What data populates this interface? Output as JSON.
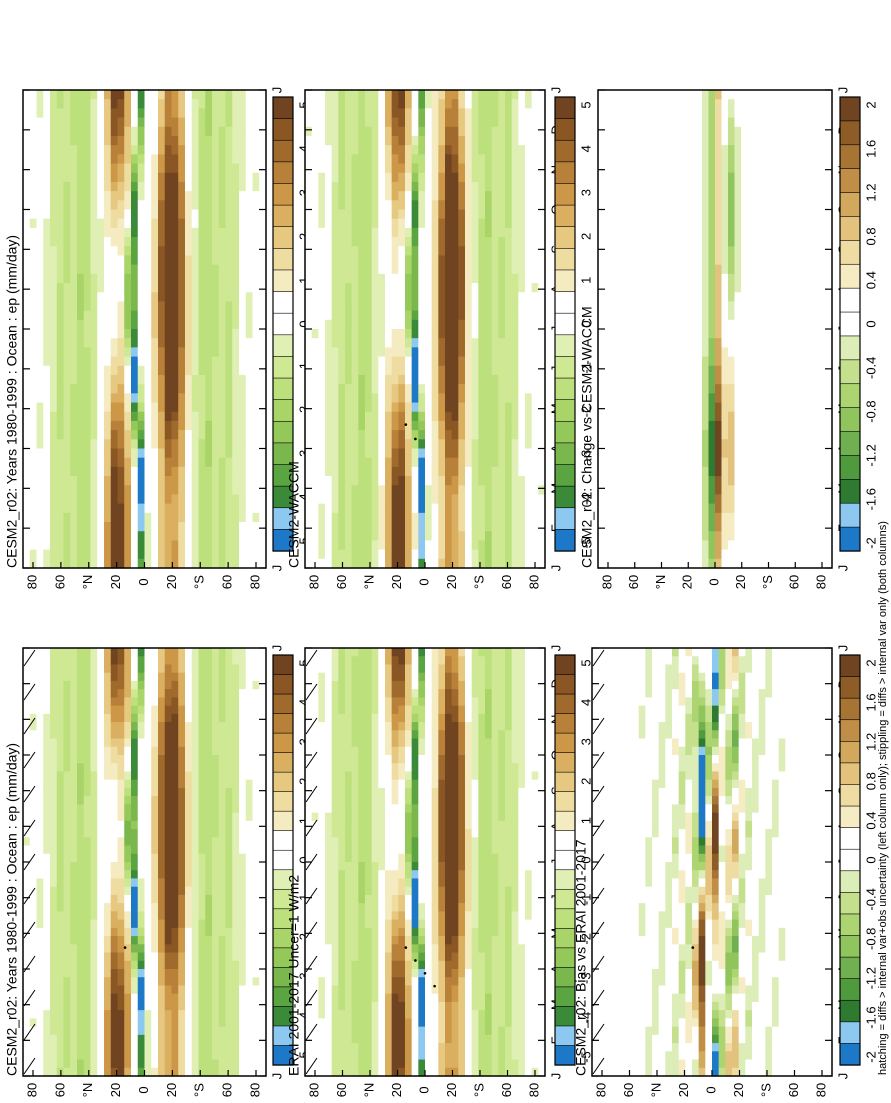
{
  "figure": {
    "footnote": "hatching = diffs > internal var+obs uncertainty (left column only); stippling = diffs > internal var only (both columns)"
  },
  "palettes": {
    "field": [
      "#1e78c8",
      "#8cc8f0",
      "#3a8a3a",
      "#5aa541",
      "#7ab84e",
      "#94c858",
      "#a8d468",
      "#bce07c",
      "#cee894",
      "#e0f0b4",
      "#ffffff",
      "#ffffff",
      "#f4ecc0",
      "#eedca0",
      "#e6c880",
      "#dab060",
      "#cc9848",
      "#b88038",
      "#a06a2c",
      "#8a5624",
      "#704420"
    ],
    "diff": [
      "#1e78c8",
      "#8cc8f0",
      "#2e7a30",
      "#4e9a3c",
      "#70b050",
      "#90c45c",
      "#acd470",
      "#c4e08c",
      "#dcedb8",
      "#ffffff",
      "#ffffff",
      "#f6ecc4",
      "#eedca2",
      "#e2c27c",
      "#d2a85c",
      "#c08e46",
      "#a87434",
      "#8e5c26",
      "#704420"
    ]
  },
  "chart_data": [
    {
      "type": "heatmap",
      "title": "CESM2_r02: Years 1980-1999 : Ocean : ep (mm/day)",
      "x_ticks": [
        "J",
        "F",
        "M",
        "A",
        "M",
        "J",
        "J",
        "A",
        "S",
        "O",
        "N",
        "D",
        "J"
      ],
      "y_ticks": [
        "80",
        "60",
        "°N",
        "20",
        "0",
        "20",
        "°S",
        "60",
        "80"
      ],
      "colorbar_labels": [
        "5",
        "4",
        "3",
        "2",
        "1",
        "0",
        "-1",
        "-2",
        "-3",
        "-4",
        "-5"
      ],
      "palette": "field",
      "kind": "field",
      "hatching": true,
      "stipple": 1,
      "variant": 0
    },
    {
      "type": "heatmap",
      "title": "CESM2_r02: Years 1980-1999 : Ocean : ep (mm/day)",
      "x_ticks": [
        "J",
        "F",
        "M",
        "A",
        "M",
        "J",
        "J",
        "A",
        "S",
        "O",
        "N",
        "D",
        "J"
      ],
      "y_ticks": [
        "80",
        "60",
        "°N",
        "20",
        "0",
        "20",
        "°S",
        "60",
        "80"
      ],
      "colorbar_labels": [
        "5",
        "4",
        "3",
        "2",
        "1",
        "0",
        "-1",
        "-2",
        "-3",
        "-4",
        "-5"
      ],
      "palette": "field",
      "kind": "field",
      "hatching": false,
      "stipple": 0,
      "variant": 1
    },
    {
      "type": "heatmap",
      "title": "ERAI 2001-2017 Uncer=1 W/m2",
      "x_ticks": [
        "J",
        "F",
        "M",
        "A",
        "M",
        "J",
        "J",
        "A",
        "S",
        "O",
        "N",
        "D",
        "J"
      ],
      "y_ticks": [
        "80",
        "60",
        "°N",
        "20",
        "0",
        "20",
        "°S",
        "60",
        "80"
      ],
      "colorbar_labels": [
        "5",
        "4",
        "3",
        "2",
        "1",
        "0",
        "-1",
        "-2",
        "-3",
        "-4",
        "-5"
      ],
      "palette": "field",
      "kind": "field",
      "hatching": true,
      "stipple": 4,
      "variant": 2
    },
    {
      "type": "heatmap",
      "title": "CESM2-WACCM",
      "x_ticks": [
        "J",
        "F",
        "M",
        "A",
        "M",
        "J",
        "J",
        "A",
        "S",
        "O",
        "N",
        "D",
        "J"
      ],
      "y_ticks": [
        "80",
        "60",
        "°N",
        "20",
        "0",
        "20",
        "°S",
        "60",
        "80"
      ],
      "colorbar_labels": [
        "5",
        "4",
        "3",
        "2",
        "1",
        "0",
        "-1",
        "-2",
        "-3",
        "-4",
        "-5"
      ],
      "palette": "field",
      "kind": "field",
      "hatching": false,
      "stipple": 2,
      "variant": 3
    },
    {
      "type": "heatmap",
      "title": "CESM2_r02: Bias vs ERAI 2001-2017",
      "x_ticks": [
        "J",
        "F",
        "M",
        "A",
        "M",
        "J",
        "J",
        "A",
        "S",
        "O",
        "N",
        "D",
        "J"
      ],
      "y_ticks": [
        "80",
        "60",
        "°N",
        "20",
        "0",
        "20",
        "°S",
        "60",
        "80"
      ],
      "colorbar_labels": [
        "2",
        "1.6",
        "1.2",
        "0.8",
        "0.4",
        "0",
        "-0.4",
        "-0.8",
        "-1.2",
        "-1.6",
        "-2"
      ],
      "palette": "diff",
      "kind": "bias",
      "hatching": true,
      "stipple": 1,
      "variant": 4
    },
    {
      "type": "heatmap",
      "title": "CESM2_r02: Change vs CESM2-WACCM",
      "x_ticks": [
        "J",
        "F",
        "M",
        "A",
        "M",
        "J",
        "J",
        "A",
        "S",
        "O",
        "N",
        "D",
        "J"
      ],
      "y_ticks": [
        "80",
        "60",
        "°N",
        "20",
        "0",
        "20",
        "°S",
        "60",
        "80"
      ],
      "colorbar_labels": [
        "2",
        "1.6",
        "1.2",
        "0.8",
        "0.4",
        "0",
        "-0.4",
        "-0.8",
        "-1.2",
        "-1.6",
        "-2"
      ],
      "palette": "diff",
      "kind": "change",
      "hatching": false,
      "stipple": 0,
      "variant": 5
    }
  ]
}
